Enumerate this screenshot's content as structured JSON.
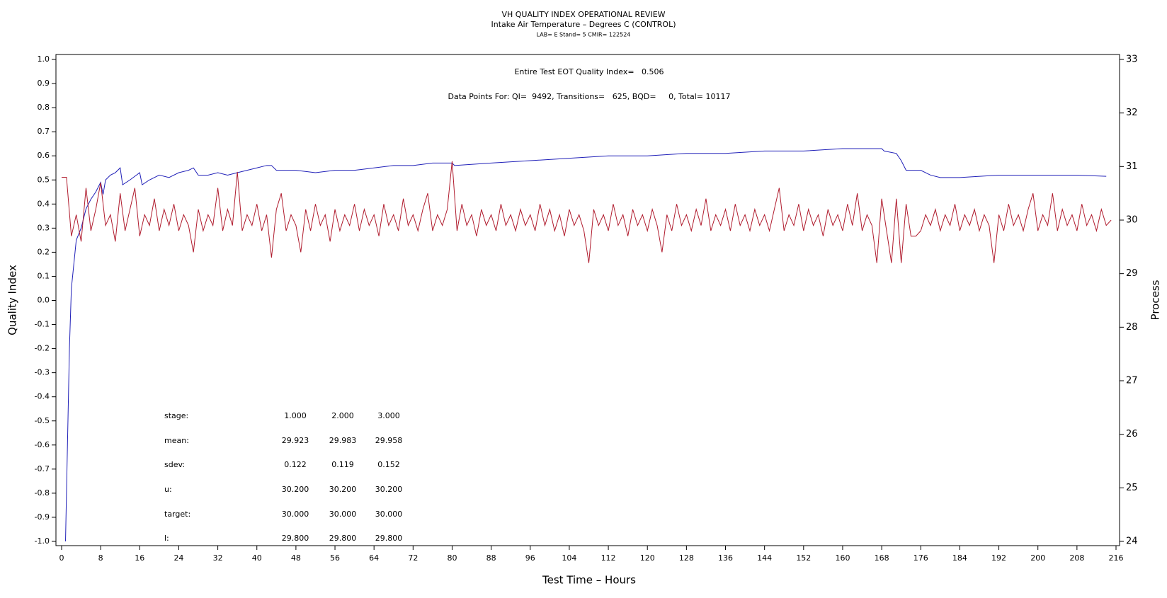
{
  "chart_data": {
    "type": "line",
    "title": "VH QUALITY INDEX OPERATIONAL REVIEW",
    "subtitle": "Intake Air Temperature – Degrees C (CONTROL)",
    "subtitle2": "LAB= E Stand= 5 CMIR= 122524",
    "xlabel": "Test Time – Hours",
    "ylabel": "Quality Index",
    "y2label": "Process",
    "annotations": [
      "Entire Test EOT Quality Index=   0.506",
      "Data Points For: QI=  9492, Transitions=   625, BQD=     0, Total= 10117"
    ],
    "stats_table": {
      "rows": [
        {
          "label": "stage:",
          "values": [
            "1.000",
            "2.000",
            "3.000"
          ]
        },
        {
          "label": "mean:",
          "values": [
            "29.923",
            "29.983",
            "29.958"
          ]
        },
        {
          "label": "sdev:",
          "values": [
            "0.122",
            "0.119",
            "0.152"
          ]
        },
        {
          "label": "u:",
          "values": [
            "30.200",
            "30.200",
            "30.200"
          ]
        },
        {
          "label": "target:",
          "values": [
            "30.000",
            "30.000",
            "30.000"
          ]
        },
        {
          "label": "l:",
          "values": [
            "29.800",
            "29.800",
            "29.800"
          ]
        }
      ]
    },
    "xlim": [
      0,
      216
    ],
    "xticks": [
      0,
      8,
      16,
      24,
      32,
      40,
      48,
      56,
      64,
      72,
      80,
      88,
      96,
      104,
      112,
      120,
      128,
      136,
      144,
      152,
      160,
      168,
      176,
      184,
      192,
      200,
      208,
      216
    ],
    "ylim": [
      -1,
      1
    ],
    "yticks": [
      {
        "value": 1,
        "label": "1.0"
      },
      0.9,
      0.8,
      0.7,
      0.6,
      0.5,
      0.4,
      0.3,
      0.2,
      0.1,
      {
        "value": 0,
        "label": "0.0"
      },
      -0.1,
      -0.2,
      -0.3,
      -0.4,
      -0.5,
      -0.6,
      -0.7,
      -0.8,
      -0.9,
      {
        "value": -1,
        "label": "-1.0"
      }
    ],
    "y2lim": [
      24,
      33
    ],
    "y2ticks": [
      24,
      25,
      26,
      27,
      28,
      29,
      30,
      31,
      32,
      33
    ],
    "series": [
      {
        "color": "#2020b8",
        "axis": "y",
        "x": [
          0.8,
          1.2,
          1.6,
          2,
          2.5,
          3,
          4,
          5,
          6,
          7,
          8,
          8.5,
          9,
          10,
          11,
          12,
          12.5,
          14,
          16,
          16.5,
          18,
          20,
          22,
          24,
          26,
          27,
          28,
          30,
          32,
          34,
          36,
          38,
          40,
          42,
          43,
          44,
          48,
          52,
          56,
          60,
          64,
          68,
          72,
          76,
          80,
          80.5,
          88,
          96,
          104,
          112,
          120,
          128,
          136,
          144,
          152,
          160,
          165,
          168,
          168.5,
          171,
          172,
          173,
          176,
          178,
          180,
          184,
          192,
          200,
          208,
          214
        ],
        "values": [
          -1.0,
          -0.6,
          -0.2,
          0.05,
          0.15,
          0.25,
          0.3,
          0.38,
          0.42,
          0.45,
          0.49,
          0.44,
          0.5,
          0.52,
          0.53,
          0.55,
          0.48,
          0.5,
          0.53,
          0.48,
          0.5,
          0.52,
          0.51,
          0.53,
          0.54,
          0.55,
          0.52,
          0.52,
          0.53,
          0.52,
          0.53,
          0.54,
          0.55,
          0.56,
          0.56,
          0.54,
          0.54,
          0.53,
          0.54,
          0.54,
          0.55,
          0.56,
          0.56,
          0.57,
          0.57,
          0.56,
          0.57,
          0.58,
          0.59,
          0.6,
          0.6,
          0.61,
          0.61,
          0.62,
          0.62,
          0.63,
          0.63,
          0.63,
          0.62,
          0.61,
          0.58,
          0.54,
          0.54,
          0.52,
          0.51,
          0.51,
          0.52,
          0.52,
          0.52,
          0.515
        ]
      },
      {
        "color": "#b01c2e",
        "axis": "y2",
        "x": [
          0,
          1,
          2,
          3,
          4,
          5,
          6,
          7,
          8,
          9,
          10,
          11,
          12,
          13,
          14,
          15,
          16,
          17,
          18,
          19,
          20,
          21,
          22,
          23,
          24,
          25,
          26,
          27,
          28,
          29,
          30,
          31,
          32,
          33,
          34,
          35,
          36,
          37,
          38,
          39,
          40,
          41,
          42,
          43,
          44,
          45,
          46,
          47,
          48,
          49,
          50,
          51,
          52,
          53,
          54,
          55,
          56,
          57,
          58,
          59,
          60,
          61,
          62,
          63,
          64,
          65,
          66,
          67,
          68,
          69,
          70,
          71,
          72,
          73,
          74,
          75,
          76,
          77,
          78,
          79,
          80,
          81,
          82,
          83,
          84,
          85,
          86,
          87,
          88,
          89,
          90,
          91,
          92,
          93,
          94,
          95,
          96,
          97,
          98,
          99,
          100,
          101,
          102,
          103,
          104,
          105,
          106,
          107,
          108,
          109,
          110,
          111,
          112,
          113,
          114,
          115,
          116,
          117,
          118,
          119,
          120,
          121,
          122,
          123,
          124,
          125,
          126,
          127,
          128,
          129,
          130,
          131,
          132,
          133,
          134,
          135,
          136,
          137,
          138,
          139,
          140,
          141,
          142,
          143,
          144,
          145,
          146,
          147,
          148,
          149,
          150,
          151,
          152,
          153,
          154,
          155,
          156,
          157,
          158,
          159,
          160,
          161,
          162,
          163,
          164,
          165,
          166,
          167,
          168,
          169,
          170,
          171,
          172,
          173,
          174,
          175,
          176,
          177,
          178,
          179,
          180,
          181,
          182,
          183,
          184,
          185,
          186,
          187,
          188,
          189,
          190,
          191,
          192,
          193,
          194,
          195,
          196,
          197,
          198,
          199,
          200,
          201,
          202,
          203,
          204,
          205,
          206,
          207,
          208,
          209,
          210,
          211,
          212,
          213,
          214,
          215
        ],
        "values": [
          30.8,
          30.8,
          29.7,
          30.1,
          29.6,
          30.6,
          29.8,
          30.2,
          30.7,
          29.9,
          30.1,
          29.6,
          30.5,
          29.8,
          30.2,
          30.6,
          29.7,
          30.1,
          29.9,
          30.4,
          29.8,
          30.2,
          29.9,
          30.3,
          29.8,
          30.1,
          29.9,
          29.4,
          30.2,
          29.8,
          30.1,
          29.9,
          30.6,
          29.8,
          30.2,
          29.9,
          30.9,
          29.8,
          30.1,
          29.9,
          30.3,
          29.8,
          30.1,
          29.3,
          30.2,
          30.5,
          29.8,
          30.1,
          29.9,
          29.4,
          30.2,
          29.8,
          30.3,
          29.9,
          30.1,
          29.6,
          30.2,
          29.8,
          30.1,
          29.9,
          30.3,
          29.8,
          30.2,
          29.9,
          30.1,
          29.7,
          30.3,
          29.9,
          30.1,
          29.8,
          30.4,
          29.9,
          30.1,
          29.8,
          30.2,
          30.5,
          29.8,
          30.1,
          29.9,
          30.2,
          31.1,
          29.8,
          30.3,
          29.9,
          30.1,
          29.7,
          30.2,
          29.9,
          30.1,
          29.8,
          30.3,
          29.9,
          30.1,
          29.8,
          30.2,
          29.9,
          30.1,
          29.8,
          30.3,
          29.9,
          30.2,
          29.8,
          30.1,
          29.7,
          30.2,
          29.9,
          30.1,
          29.8,
          29.2,
          30.2,
          29.9,
          30.1,
          29.8,
          30.3,
          29.9,
          30.1,
          29.7,
          30.2,
          29.9,
          30.1,
          29.8,
          30.2,
          29.9,
          29.4,
          30.1,
          29.8,
          30.3,
          29.9,
          30.1,
          29.8,
          30.2,
          29.9,
          30.4,
          29.8,
          30.1,
          29.9,
          30.2,
          29.8,
          30.3,
          29.9,
          30.1,
          29.8,
          30.2,
          29.9,
          30.1,
          29.8,
          30.2,
          30.6,
          29.8,
          30.1,
          29.9,
          30.3,
          29.8,
          30.2,
          29.9,
          30.1,
          29.7,
          30.2,
          29.9,
          30.1,
          29.8,
          30.3,
          29.9,
          30.5,
          29.8,
          30.1,
          29.9,
          29.2,
          30.4,
          29.8,
          29.2,
          30.4,
          29.2,
          30.3,
          29.7,
          29.7,
          29.8,
          30.1,
          29.9,
          30.2,
          29.8,
          30.1,
          29.9,
          30.3,
          29.8,
          30.1,
          29.9,
          30.2,
          29.8,
          30.1,
          29.9,
          29.2,
          30.1,
          29.8,
          30.3,
          29.9,
          30.1,
          29.8,
          30.2,
          30.5,
          29.8,
          30.1,
          29.9,
          30.5,
          29.8,
          30.2,
          29.9,
          30.1,
          29.8,
          30.3,
          29.9,
          30.1,
          29.8,
          30.2,
          29.9,
          30.0
        ]
      }
    ]
  }
}
